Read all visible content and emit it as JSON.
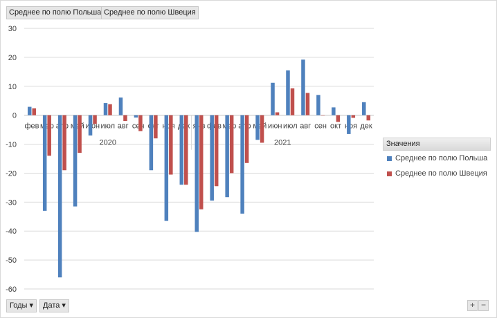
{
  "fields": {
    "top": [
      "Среднее по полю Польша",
      "Среднее по полю Швеция"
    ],
    "bottom": [
      "Годы",
      "Дата"
    ]
  },
  "legend": {
    "title": "Значения"
  },
  "zoom": {
    "plus": "+",
    "minus": "−"
  },
  "chart_data": {
    "type": "bar",
    "ylim": [
      -60,
      30
    ],
    "yticks": [
      30,
      20,
      10,
      0,
      -10,
      -20,
      -30,
      -40,
      -50,
      -60
    ],
    "grid": true,
    "legend_position": "right",
    "groups": [
      {
        "year": "2020",
        "months": [
          "фев",
          "мар",
          "апр",
          "май",
          "июн",
          "июл",
          "авг",
          "сен",
          "окт",
          "ноя",
          "дек"
        ]
      },
      {
        "year": "2021",
        "months": [
          "янв",
          "фев",
          "мар",
          "апр",
          "май",
          "июн",
          "июл",
          "авг",
          "сен",
          "окт",
          "ноя",
          "дек"
        ]
      }
    ],
    "series": [
      {
        "name": "Среднее по полю Польша",
        "color": "#4f81bd",
        "values": [
          2.9,
          -33,
          -56,
          -31.5,
          -7,
          4.2,
          6.1,
          -0.8,
          -19,
          -36.5,
          -24,
          -40.3,
          -29.5,
          -28.3,
          -34,
          -8.5,
          11.2,
          15.5,
          19.2,
          7,
          2.7,
          -6.5,
          4.5
        ]
      },
      {
        "name": "Среднее по полю Швеция",
        "color": "#c0504d",
        "values": [
          2.4,
          -14,
          -19,
          -13,
          -3,
          3.8,
          -2,
          -5.5,
          -8,
          -20.5,
          -24,
          -32.5,
          -24.5,
          -20,
          -16.5,
          -9.5,
          1.0,
          9.3,
          7.7,
          0,
          -2.3,
          -0.9,
          -1.8
        ]
      }
    ]
  }
}
